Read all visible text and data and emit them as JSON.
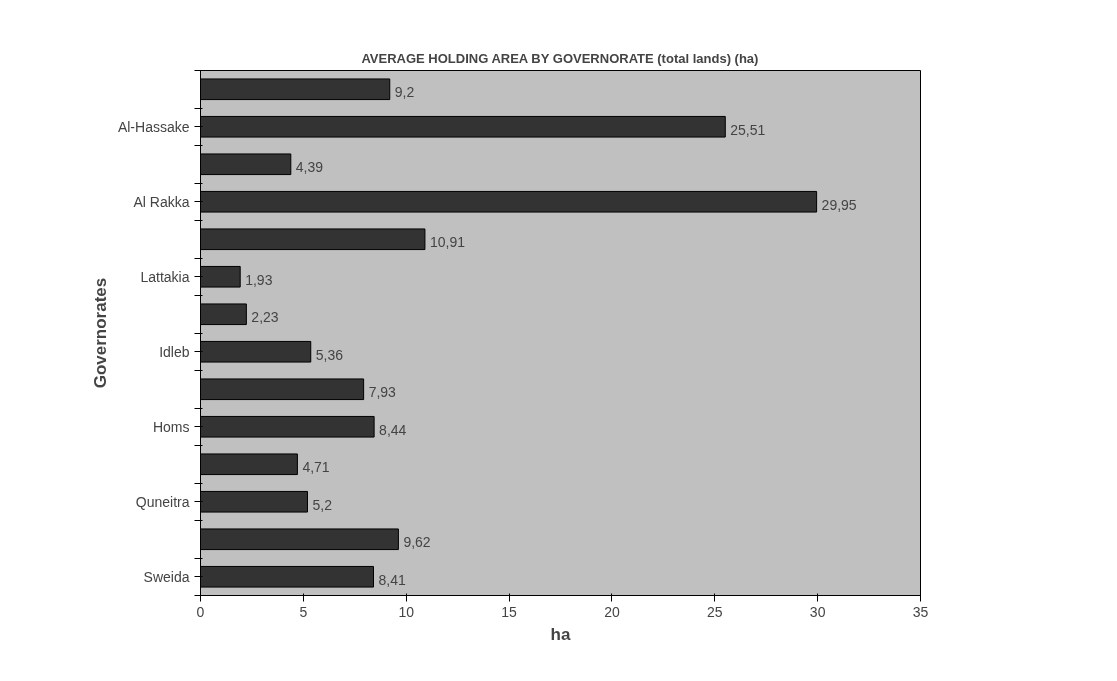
{
  "chart_data": {
    "type": "bar",
    "orientation": "horizontal",
    "title": "AVERAGE HOLDING AREA BY GOVERNORATE (total lands) (ha)",
    "xlabel": "ha",
    "ylabel": "Governorates",
    "categories": [
      null,
      "Al-Hassake",
      null,
      "Al Rakka",
      null,
      "Lattakia",
      null,
      "Idleb",
      null,
      "Homs",
      null,
      "Quneitra",
      null,
      "Sweida"
    ],
    "values": [
      9.2,
      25.51,
      4.39,
      29.95,
      10.91,
      1.93,
      2.23,
      5.36,
      7.93,
      8.44,
      4.71,
      5.2,
      9.62,
      8.41
    ],
    "value_labels": [
      "9,2",
      "25,51",
      "4,39",
      "29,95",
      "10,91",
      "1,93",
      "2,23",
      "5,36",
      "7,93",
      "8,44",
      "4,71",
      "5,2",
      "9,62",
      "8,41"
    ],
    "color": "#333333",
    "xlim": [
      0,
      35
    ],
    "xticks": [
      0,
      5,
      10,
      15,
      20,
      25,
      30,
      35
    ],
    "grid": false
  }
}
